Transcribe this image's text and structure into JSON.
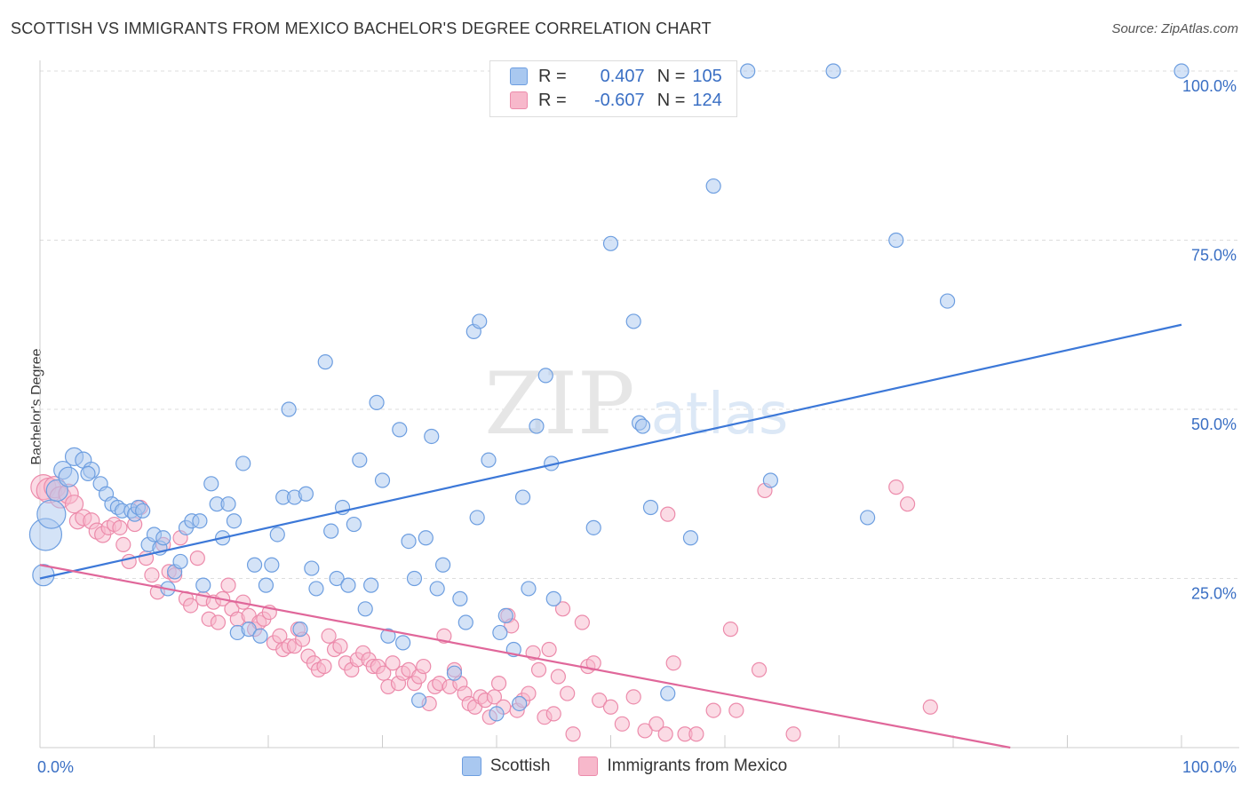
{
  "title": "SCOTTISH VS IMMIGRANTS FROM MEXICO BACHELOR'S DEGREE CORRELATION CHART",
  "source": "Source: ZipAtlas.com",
  "watermark": {
    "zip": "ZIP",
    "atlas": "atlas"
  },
  "legend": {
    "r_label": "R =",
    "n_label": "N =",
    "rows": [
      {
        "r": "0.407",
        "n": "105"
      },
      {
        "r": "-0.607",
        "n": "124"
      }
    ]
  },
  "bottom_legend": [
    "Scottish",
    "Immigrants from Mexico"
  ],
  "colors": {
    "scottish_fill": "#a9c8f0",
    "scottish_stroke": "#6d9ee0",
    "scottish_line": "#3c78d8",
    "mexico_fill": "#f7b8cb",
    "mexico_stroke": "#ec8bab",
    "mexico_line": "#e0679a",
    "axis_label": "#3a6fc4",
    "grid": "#dddddd"
  },
  "chart_data": {
    "type": "scatter",
    "title": "SCOTTISH VS IMMIGRANTS FROM MEXICO BACHELOR'S DEGREE CORRELATION CHART",
    "xlabel": "",
    "ylabel": "Bachelor's Degree",
    "xlim": [
      0,
      100
    ],
    "ylim": [
      0,
      100
    ],
    "x_tick_labels": [
      "0.0%",
      "100.0%"
    ],
    "y_tick_labels": [
      "100.0%",
      "75.0%",
      "50.0%",
      "25.0%"
    ],
    "y_ticks": [
      100,
      75,
      50,
      25
    ],
    "grid": true,
    "series": [
      {
        "name": "Scottish",
        "r": 0.407,
        "n": 105,
        "trend": {
          "x": [
            0,
            100
          ],
          "y": [
            25.0,
            62.5
          ]
        },
        "points": [
          [
            0.5,
            31.5,
            18
          ],
          [
            1.0,
            34.5,
            16
          ],
          [
            1.5,
            38.0,
            12
          ],
          [
            2.0,
            41.0,
            10
          ],
          [
            0.3,
            25.5,
            12
          ],
          [
            2.5,
            40.0,
            11
          ],
          [
            3.0,
            43.0,
            10
          ],
          [
            3.8,
            42.5,
            9
          ],
          [
            4.5,
            41.0,
            9
          ],
          [
            4.2,
            40.5,
            8
          ],
          [
            5.3,
            39.0,
            8
          ],
          [
            5.8,
            37.5,
            8
          ],
          [
            6.3,
            36.0,
            8
          ],
          [
            6.8,
            35.5,
            8
          ],
          [
            7.2,
            35.0,
            8
          ],
          [
            8.0,
            35.0,
            8
          ],
          [
            8.3,
            34.5,
            8
          ],
          [
            8.6,
            35.5,
            8
          ],
          [
            9.0,
            35.0,
            8
          ],
          [
            9.5,
            30.0,
            8
          ],
          [
            10.0,
            31.5,
            8
          ],
          [
            10.5,
            29.5,
            8
          ],
          [
            10.8,
            31.0,
            8
          ],
          [
            11.2,
            23.5,
            8
          ],
          [
            11.8,
            26.0,
            8
          ],
          [
            12.3,
            27.5,
            8
          ],
          [
            12.8,
            32.5,
            8
          ],
          [
            13.3,
            33.5,
            8
          ],
          [
            14.0,
            33.5,
            8
          ],
          [
            14.3,
            24.0,
            8
          ],
          [
            15.0,
            39.0,
            8
          ],
          [
            15.5,
            36.0,
            8
          ],
          [
            16.0,
            31.0,
            8
          ],
          [
            16.5,
            36.0,
            8
          ],
          [
            17.0,
            33.5,
            8
          ],
          [
            17.3,
            17.0,
            8
          ],
          [
            17.8,
            42.0,
            8
          ],
          [
            18.3,
            17.5,
            8
          ],
          [
            18.8,
            27.0,
            8
          ],
          [
            19.3,
            16.5,
            8
          ],
          [
            19.8,
            24.0,
            8
          ],
          [
            20.3,
            27.0,
            8
          ],
          [
            20.8,
            31.5,
            8
          ],
          [
            21.3,
            37.0,
            8
          ],
          [
            21.8,
            50.0,
            8
          ],
          [
            22.3,
            37.0,
            8
          ],
          [
            22.8,
            17.5,
            8
          ],
          [
            23.3,
            37.5,
            8
          ],
          [
            23.8,
            26.5,
            8
          ],
          [
            24.2,
            23.5,
            8
          ],
          [
            25.0,
            57.0,
            8
          ],
          [
            25.5,
            32.0,
            8
          ],
          [
            26.0,
            25.0,
            8
          ],
          [
            26.5,
            35.5,
            8
          ],
          [
            27.0,
            24.0,
            8
          ],
          [
            27.5,
            33.0,
            8
          ],
          [
            28.0,
            42.5,
            8
          ],
          [
            28.5,
            20.5,
            8
          ],
          [
            29.0,
            24.0,
            8
          ],
          [
            29.5,
            51.0,
            8
          ],
          [
            30.0,
            39.5,
            8
          ],
          [
            30.5,
            16.5,
            8
          ],
          [
            31.5,
            47.0,
            8
          ],
          [
            31.8,
            15.5,
            8
          ],
          [
            32.3,
            30.5,
            8
          ],
          [
            32.8,
            25.0,
            8
          ],
          [
            33.2,
            7.0,
            8
          ],
          [
            33.8,
            31.0,
            8
          ],
          [
            34.3,
            46.0,
            8
          ],
          [
            34.8,
            23.5,
            8
          ],
          [
            35.3,
            27.0,
            8
          ],
          [
            36.3,
            11.0,
            8
          ],
          [
            36.8,
            22.0,
            8
          ],
          [
            37.3,
            18.5,
            8
          ],
          [
            38.0,
            61.5,
            8
          ],
          [
            38.5,
            63.0,
            8
          ],
          [
            38.3,
            34.0,
            8
          ],
          [
            39.3,
            42.5,
            8
          ],
          [
            40.0,
            5.0,
            8
          ],
          [
            40.3,
            17.0,
            8
          ],
          [
            40.8,
            19.5,
            8
          ],
          [
            41.5,
            14.5,
            8
          ],
          [
            42.0,
            6.5,
            8
          ],
          [
            42.3,
            37.0,
            8
          ],
          [
            42.8,
            23.5,
            8
          ],
          [
            43.5,
            47.5,
            8
          ],
          [
            44.3,
            55.0,
            8
          ],
          [
            44.8,
            42.0,
            8
          ],
          [
            45.0,
            22.0,
            8
          ],
          [
            48.5,
            32.5,
            8
          ],
          [
            50.0,
            74.5,
            8
          ],
          [
            52.0,
            63.0,
            8
          ],
          [
            52.5,
            48.0,
            8
          ],
          [
            52.8,
            47.5,
            8
          ],
          [
            53.5,
            35.5,
            8
          ],
          [
            55.0,
            8.0,
            8
          ],
          [
            57.0,
            31.0,
            8
          ],
          [
            59.0,
            83.0,
            8
          ],
          [
            62.0,
            100.0,
            8
          ],
          [
            64.0,
            39.5,
            8
          ],
          [
            69.5,
            100.0,
            8
          ],
          [
            72.5,
            34.0,
            8
          ],
          [
            75.0,
            75.0,
            8
          ],
          [
            79.5,
            66.0,
            8
          ],
          [
            100.0,
            100.0,
            8
          ]
        ]
      },
      {
        "name": "Immigrants from Mexico",
        "r": -0.607,
        "n": 124,
        "trend": {
          "x": [
            0,
            85
          ],
          "y": [
            27.0,
            0.0
          ]
        },
        "points": [
          [
            0.3,
            38.5,
            14
          ],
          [
            0.8,
            38.0,
            14
          ],
          [
            1.3,
            38.5,
            12
          ],
          [
            1.8,
            37.0,
            12
          ],
          [
            2.5,
            37.5,
            11
          ],
          [
            3.0,
            36.0,
            10
          ],
          [
            3.3,
            33.5,
            9
          ],
          [
            3.8,
            34.0,
            9
          ],
          [
            4.5,
            33.5,
            9
          ],
          [
            5.0,
            32.0,
            9
          ],
          [
            5.5,
            31.5,
            9
          ],
          [
            6.0,
            32.5,
            8
          ],
          [
            6.5,
            33.0,
            8
          ],
          [
            7.0,
            32.5,
            8
          ],
          [
            7.3,
            30.0,
            8
          ],
          [
            7.8,
            27.5,
            8
          ],
          [
            8.3,
            33.0,
            8
          ],
          [
            8.8,
            35.5,
            8
          ],
          [
            9.3,
            28.0,
            8
          ],
          [
            9.8,
            25.5,
            8
          ],
          [
            10.3,
            23.0,
            8
          ],
          [
            10.8,
            30.0,
            8
          ],
          [
            11.3,
            26.0,
            8
          ],
          [
            11.8,
            25.5,
            8
          ],
          [
            12.3,
            31.0,
            8
          ],
          [
            12.8,
            22.0,
            8
          ],
          [
            13.2,
            21.0,
            8
          ],
          [
            13.8,
            28.0,
            8
          ],
          [
            14.3,
            22.0,
            8
          ],
          [
            14.8,
            19.0,
            8
          ],
          [
            15.2,
            21.5,
            8
          ],
          [
            15.6,
            18.5,
            8
          ],
          [
            16.0,
            22.0,
            8
          ],
          [
            16.5,
            24.0,
            8
          ],
          [
            16.8,
            20.5,
            8
          ],
          [
            17.3,
            19.0,
            8
          ],
          [
            17.8,
            21.5,
            8
          ],
          [
            18.3,
            19.5,
            8
          ],
          [
            18.8,
            17.5,
            8
          ],
          [
            19.2,
            18.5,
            8
          ],
          [
            19.6,
            19.0,
            8
          ],
          [
            20.1,
            20.0,
            8
          ],
          [
            20.5,
            15.5,
            8
          ],
          [
            21.0,
            16.5,
            8
          ],
          [
            21.3,
            14.5,
            8
          ],
          [
            21.8,
            15.0,
            8
          ],
          [
            22.3,
            15.0,
            8
          ],
          [
            22.6,
            17.5,
            8
          ],
          [
            23.0,
            16.0,
            8
          ],
          [
            23.5,
            13.5,
            8
          ],
          [
            24.0,
            12.5,
            8
          ],
          [
            24.4,
            11.5,
            8
          ],
          [
            24.9,
            12.0,
            8
          ],
          [
            25.3,
            16.5,
            8
          ],
          [
            25.8,
            14.5,
            8
          ],
          [
            26.3,
            15.0,
            8
          ],
          [
            26.8,
            12.5,
            8
          ],
          [
            27.3,
            11.5,
            8
          ],
          [
            27.8,
            13.0,
            8
          ],
          [
            28.3,
            14.0,
            8
          ],
          [
            28.8,
            13.0,
            8
          ],
          [
            29.2,
            12.0,
            8
          ],
          [
            29.6,
            12.0,
            8
          ],
          [
            30.1,
            11.0,
            8
          ],
          [
            30.5,
            9.0,
            8
          ],
          [
            30.9,
            12.5,
            8
          ],
          [
            31.4,
            9.5,
            8
          ],
          [
            31.8,
            11.0,
            8
          ],
          [
            32.3,
            11.5,
            8
          ],
          [
            32.8,
            9.5,
            8
          ],
          [
            33.2,
            10.5,
            8
          ],
          [
            33.6,
            12.0,
            8
          ],
          [
            34.1,
            6.5,
            8
          ],
          [
            34.6,
            9.0,
            8
          ],
          [
            35.0,
            9.5,
            8
          ],
          [
            35.4,
            16.5,
            8
          ],
          [
            35.9,
            9.0,
            8
          ],
          [
            36.3,
            11.5,
            8
          ],
          [
            36.8,
            9.5,
            8
          ],
          [
            37.2,
            8.0,
            8
          ],
          [
            37.6,
            6.5,
            8
          ],
          [
            38.1,
            6.0,
            8
          ],
          [
            38.6,
            7.5,
            8
          ],
          [
            39.0,
            7.0,
            8
          ],
          [
            39.4,
            4.5,
            8
          ],
          [
            39.8,
            7.5,
            8
          ],
          [
            40.2,
            9.5,
            8
          ],
          [
            40.6,
            6.0,
            8
          ],
          [
            41.0,
            19.5,
            8
          ],
          [
            41.3,
            18.0,
            8
          ],
          [
            41.8,
            5.5,
            8
          ],
          [
            42.3,
            7.0,
            8
          ],
          [
            42.8,
            8.0,
            8
          ],
          [
            43.2,
            14.0,
            8
          ],
          [
            43.7,
            11.5,
            8
          ],
          [
            44.2,
            4.5,
            8
          ],
          [
            44.6,
            14.5,
            8
          ],
          [
            45.0,
            5.0,
            8
          ],
          [
            45.4,
            10.5,
            8
          ],
          [
            45.8,
            20.5,
            8
          ],
          [
            46.2,
            8.0,
            8
          ],
          [
            46.7,
            2.0,
            8
          ],
          [
            47.5,
            18.5,
            8
          ],
          [
            48.0,
            12.0,
            8
          ],
          [
            48.5,
            12.5,
            8
          ],
          [
            49.0,
            7.0,
            8
          ],
          [
            50.0,
            6.0,
            8
          ],
          [
            51.0,
            3.5,
            8
          ],
          [
            52.0,
            7.5,
            8
          ],
          [
            53.0,
            2.5,
            8
          ],
          [
            54.0,
            3.5,
            8
          ],
          [
            54.8,
            2.0,
            8
          ],
          [
            55.5,
            12.5,
            8
          ],
          [
            55.0,
            34.5,
            8
          ],
          [
            56.5,
            2.0,
            8
          ],
          [
            57.5,
            2.0,
            8
          ],
          [
            59.0,
            5.5,
            8
          ],
          [
            60.5,
            17.5,
            8
          ],
          [
            61.0,
            5.5,
            8
          ],
          [
            63.0,
            11.5,
            8
          ],
          [
            63.5,
            38.0,
            8
          ],
          [
            66.0,
            2.0,
            8
          ],
          [
            75.0,
            38.5,
            8
          ],
          [
            76.0,
            36.0,
            8
          ],
          [
            78.0,
            6.0,
            8
          ]
        ]
      }
    ]
  }
}
